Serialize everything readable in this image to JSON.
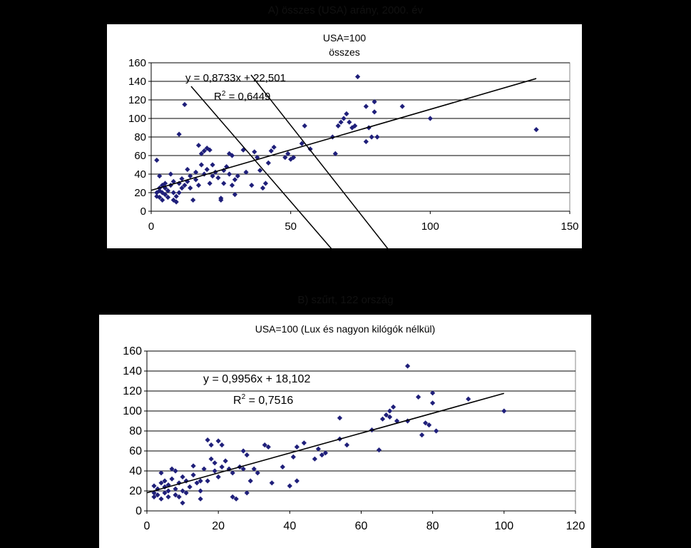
{
  "headers": {
    "top_caption": "A) összes (USA) arány, 2000. év",
    "bottom_caption": "B) szűrt, 122 ország"
  },
  "chart_data": [
    {
      "type": "scatter",
      "title": "USA=100",
      "subtitle": "összes",
      "xlim": [
        0,
        150
      ],
      "ylim": [
        0,
        160
      ],
      "xticks": [
        "0",
        "50",
        "100",
        "150"
      ],
      "yticks": [
        "0",
        "20",
        "40",
        "60",
        "80",
        "100",
        "120",
        "140",
        "160"
      ],
      "grid": "horizontal",
      "marker_color": "#1f1f7a",
      "trendline": {
        "slope": 0.8733,
        "intercept": 22.501,
        "x_range": [
          0,
          138
        ]
      },
      "equation": "y = 0,8733x + 22,501",
      "r2_prefix": "R",
      "r2_exp": "2",
      "r2_value": " = 0,6449",
      "points": [
        [
          2,
          55
        ],
        [
          2,
          20
        ],
        [
          2,
          16
        ],
        [
          3,
          38
        ],
        [
          3,
          25
        ],
        [
          3,
          22
        ],
        [
          3,
          15
        ],
        [
          4,
          28
        ],
        [
          4,
          20
        ],
        [
          4,
          12
        ],
        [
          5,
          30
        ],
        [
          5,
          25
        ],
        [
          5,
          18
        ],
        [
          6,
          22
        ],
        [
          6,
          15
        ],
        [
          7,
          40
        ],
        [
          7,
          28
        ],
        [
          8,
          32
        ],
        [
          8,
          20
        ],
        [
          8,
          12
        ],
        [
          9,
          16
        ],
        [
          9,
          10
        ],
        [
          10,
          83
        ],
        [
          10,
          30
        ],
        [
          10,
          20
        ],
        [
          11,
          35
        ],
        [
          11,
          25
        ],
        [
          12,
          28
        ],
        [
          12,
          115
        ],
        [
          13,
          45
        ],
        [
          13,
          32
        ],
        [
          14,
          38
        ],
        [
          14,
          25
        ],
        [
          15,
          12
        ],
        [
          16,
          42
        ],
        [
          16,
          34
        ],
        [
          17,
          71
        ],
        [
          17,
          28
        ],
        [
          18,
          62
        ],
        [
          18,
          50
        ],
        [
          19,
          65
        ],
        [
          19,
          40
        ],
        [
          20,
          68
        ],
        [
          20,
          45
        ],
        [
          21,
          66
        ],
        [
          21,
          30
        ],
        [
          22,
          50
        ],
        [
          22,
          38
        ],
        [
          23,
          42
        ],
        [
          24,
          36
        ],
        [
          25,
          14
        ],
        [
          25,
          12
        ],
        [
          26,
          44
        ],
        [
          26,
          30
        ],
        [
          27,
          48
        ],
        [
          28,
          62
        ],
        [
          28,
          40
        ],
        [
          29,
          60
        ],
        [
          29,
          28
        ],
        [
          30,
          18
        ],
        [
          30,
          34
        ],
        [
          31,
          38
        ],
        [
          33,
          66
        ],
        [
          34,
          42
        ],
        [
          36,
          28
        ],
        [
          37,
          64
        ],
        [
          38,
          58
        ],
        [
          39,
          44
        ],
        [
          40,
          25
        ],
        [
          41,
          30
        ],
        [
          42,
          52
        ],
        [
          43,
          65
        ],
        [
          44,
          69
        ],
        [
          48,
          58
        ],
        [
          49,
          62
        ],
        [
          50,
          56
        ],
        [
          51,
          58
        ],
        [
          54,
          73
        ],
        [
          55,
          92
        ],
        [
          57,
          67
        ],
        [
          65,
          80
        ],
        [
          66,
          62
        ],
        [
          67,
          92
        ],
        [
          68,
          96
        ],
        [
          69,
          100
        ],
        [
          70,
          105
        ],
        [
          71,
          96
        ],
        [
          72,
          90
        ],
        [
          73,
          92
        ],
        [
          74,
          145
        ],
        [
          77,
          113
        ],
        [
          77,
          75
        ],
        [
          78,
          90
        ],
        [
          79,
          80
        ],
        [
          80,
          118
        ],
        [
          80,
          107
        ],
        [
          81,
          80
        ],
        [
          90,
          113
        ],
        [
          100,
          100
        ],
        [
          138,
          88
        ]
      ]
    },
    {
      "type": "scatter",
      "title": "USA=100 (Lux és nagyon kilógók nélkül)",
      "xlim": [
        0,
        120
      ],
      "ylim": [
        0,
        160
      ],
      "xticks": [
        "0",
        "20",
        "40",
        "60",
        "80",
        "100",
        "120"
      ],
      "yticks": [
        "0",
        "20",
        "40",
        "60",
        "80",
        "100",
        "120",
        "140",
        "160"
      ],
      "grid": "horizontal",
      "marker_color": "#1f1f7a",
      "trendline": {
        "slope": 0.9956,
        "intercept": 18.102,
        "x_range": [
          0,
          100
        ]
      },
      "equation": "y = 0,9956x + 18,102",
      "r2_prefix": "R",
      "r2_exp": "2",
      "r2_value": " = 0,7516",
      "points": [
        [
          2,
          25
        ],
        [
          2,
          18
        ],
        [
          2,
          14
        ],
        [
          3,
          22
        ],
        [
          3,
          16
        ],
        [
          4,
          38
        ],
        [
          4,
          28
        ],
        [
          4,
          12
        ],
        [
          5,
          30
        ],
        [
          5,
          24
        ],
        [
          5,
          18
        ],
        [
          6,
          26
        ],
        [
          6,
          20
        ],
        [
          6,
          14
        ],
        [
          7,
          42
        ],
        [
          7,
          32
        ],
        [
          8,
          40
        ],
        [
          8,
          22
        ],
        [
          8,
          16
        ],
        [
          9,
          28
        ],
        [
          9,
          14
        ],
        [
          10,
          34
        ],
        [
          10,
          20
        ],
        [
          10,
          8
        ],
        [
          11,
          30
        ],
        [
          11,
          18
        ],
        [
          12,
          24
        ],
        [
          13,
          45
        ],
        [
          13,
          36
        ],
        [
          14,
          28
        ],
        [
          15,
          30
        ],
        [
          15,
          20
        ],
        [
          15,
          12
        ],
        [
          16,
          42
        ],
        [
          17,
          71
        ],
        [
          17,
          30
        ],
        [
          18,
          66
        ],
        [
          18,
          52
        ],
        [
          19,
          48
        ],
        [
          19,
          40
        ],
        [
          20,
          70
        ],
        [
          20,
          34
        ],
        [
          21,
          66
        ],
        [
          21,
          44
        ],
        [
          22,
          50
        ],
        [
          23,
          42
        ],
        [
          24,
          38
        ],
        [
          24,
          14
        ],
        [
          25,
          12
        ],
        [
          26,
          44
        ],
        [
          27,
          60
        ],
        [
          27,
          42
        ],
        [
          28,
          56
        ],
        [
          28,
          18
        ],
        [
          29,
          30
        ],
        [
          30,
          42
        ],
        [
          31,
          38
        ],
        [
          33,
          66
        ],
        [
          34,
          64
        ],
        [
          35,
          28
        ],
        [
          38,
          44
        ],
        [
          40,
          25
        ],
        [
          41,
          54
        ],
        [
          42,
          30
        ],
        [
          42,
          64
        ],
        [
          44,
          68
        ],
        [
          47,
          52
        ],
        [
          48,
          62
        ],
        [
          49,
          56
        ],
        [
          50,
          58
        ],
        [
          54,
          72
        ],
        [
          54,
          93
        ],
        [
          56,
          66
        ],
        [
          63,
          81
        ],
        [
          65,
          61
        ],
        [
          66,
          92
        ],
        [
          67,
          96
        ],
        [
          68,
          100
        ],
        [
          68,
          94
        ],
        [
          69,
          104
        ],
        [
          70,
          90
        ],
        [
          73,
          145
        ],
        [
          73,
          90
        ],
        [
          76,
          114
        ],
        [
          77,
          76
        ],
        [
          78,
          88
        ],
        [
          79,
          86
        ],
        [
          80,
          118
        ],
        [
          80,
          108
        ],
        [
          81,
          80
        ],
        [
          90,
          112
        ],
        [
          100,
          100
        ]
      ]
    }
  ]
}
